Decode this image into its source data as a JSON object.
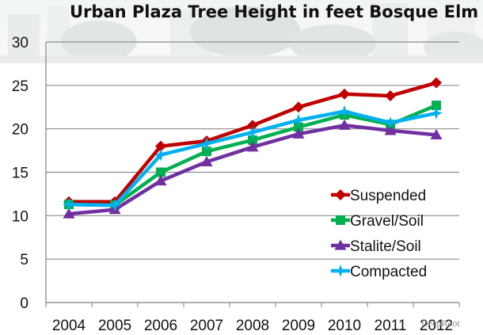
{
  "chart_data": {
    "type": "line",
    "title": "Urban Plaza Tree Height in feet Bosque Elm",
    "xlabel": "",
    "ylabel": "",
    "categories": [
      "2004",
      "2005",
      "2006",
      "2007",
      "2008",
      "2009",
      "2010",
      "2011",
      "2012"
    ],
    "ylim": [
      0,
      30
    ],
    "yticks": [
      0,
      5,
      10,
      15,
      20,
      25,
      30
    ],
    "grid": true,
    "legend_position": "bottom-right",
    "series": [
      {
        "name": "Suspended",
        "color": "#c00000",
        "marker": "diamond",
        "values": [
          11.6,
          11.6,
          18.0,
          18.6,
          20.4,
          22.5,
          24.0,
          23.8,
          25.3
        ]
      },
      {
        "name": "Gravel/Soil",
        "color": "#00b050",
        "marker": "square",
        "values": [
          11.3,
          11.2,
          15.0,
          17.4,
          18.7,
          20.2,
          21.6,
          20.5,
          22.7
        ]
      },
      {
        "name": "Stalite/Soil",
        "color": "#7030a0",
        "marker": "triangle",
        "values": [
          10.2,
          10.7,
          14.0,
          16.2,
          17.9,
          19.4,
          20.4,
          19.8,
          19.3
        ]
      },
      {
        "name": "Compacted",
        "color": "#00b0f0",
        "marker": "star",
        "values": [
          11.3,
          11.2,
          17.0,
          18.3,
          19.6,
          21.0,
          22.0,
          20.7,
          21.8
        ]
      }
    ]
  },
  "watermark": "DeepRoot"
}
